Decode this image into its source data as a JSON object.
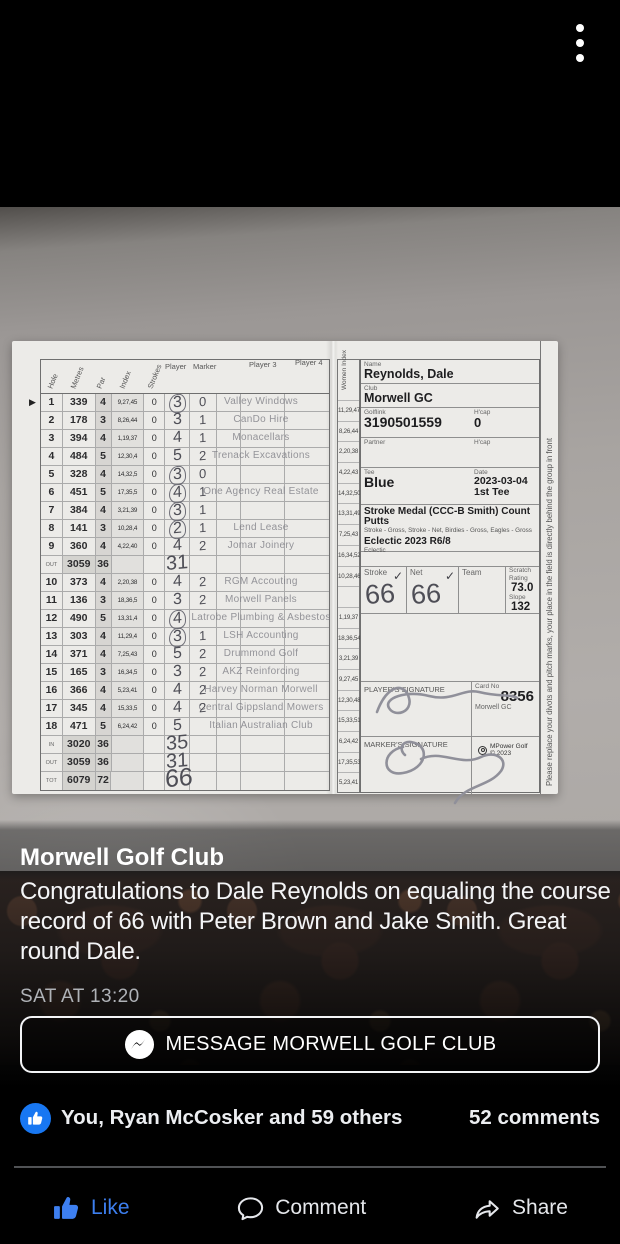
{
  "top_bar": {
    "more_menu_icon": "kebab-menu"
  },
  "post": {
    "author": "Morwell Golf Club",
    "message": "Congratulations to Dale Reynolds on equaling the course record of 66 with Peter Brown and Jake Smith. Great round Dale.",
    "timestamp": "SAT AT 13:20",
    "message_button_label": "MESSAGE MORWELL GOLF CLUB"
  },
  "engagement": {
    "reactions": "You, Ryan McCosker and 59 others",
    "comments": "52 comments"
  },
  "action_bar": {
    "like": "Like",
    "comment": "Comment",
    "share": "Share"
  },
  "colors": {
    "facebook_blue": "#1877f2",
    "like_active": "#3d7ff0",
    "paper": "#ecebe8",
    "timestamp_gray": "#afb2b7"
  },
  "scorecard": {
    "edge_note": "Please replace your divots and pitch marks, your place in the field is directly behind the group in front",
    "table": {
      "headers": {
        "hole": "Hole",
        "metres": "Metres",
        "par": "Par",
        "index": "Index",
        "strokes": "Strokes",
        "player": "Player",
        "marker": "Marker",
        "player3": "Player 3",
        "player4": "Player 4"
      },
      "rows": [
        {
          "type": "hole",
          "hole": "1",
          "metres": "339",
          "par": "4",
          "index": "9,27,45",
          "strokes": "0",
          "score": "3",
          "score_circled": true,
          "marker": "0",
          "sponsor": "Valley Windows"
        },
        {
          "type": "hole",
          "hole": "2",
          "metres": "178",
          "par": "3",
          "index": "8,26,44",
          "strokes": "0",
          "score": "3",
          "score_circled": false,
          "marker": "1",
          "sponsor": "CanDo Hire"
        },
        {
          "type": "hole",
          "hole": "3",
          "metres": "394",
          "par": "4",
          "index": "1,19,37",
          "strokes": "0",
          "score": "4",
          "score_circled": false,
          "marker": "1",
          "sponsor": "Monacellars"
        },
        {
          "type": "hole",
          "hole": "4",
          "metres": "484",
          "par": "5",
          "index": "12,30,4",
          "strokes": "0",
          "score": "5",
          "score_circled": false,
          "marker": "2",
          "sponsor": "Trenack Excavations"
        },
        {
          "type": "hole",
          "hole": "5",
          "metres": "328",
          "par": "4",
          "index": "14,32,5",
          "strokes": "0",
          "score": "3",
          "score_circled": true,
          "marker": "0",
          "sponsor": ""
        },
        {
          "type": "hole",
          "hole": "6",
          "metres": "451",
          "par": "5",
          "index": "17,35,5",
          "strokes": "0",
          "score": "4",
          "score_circled": true,
          "marker": "1",
          "sponsor": "One Agency Real Estate"
        },
        {
          "type": "hole",
          "hole": "7",
          "metres": "384",
          "par": "4",
          "index": "3,21,39",
          "strokes": "0",
          "score": "3",
          "score_circled": true,
          "marker": "1",
          "sponsor": ""
        },
        {
          "type": "hole",
          "hole": "8",
          "metres": "141",
          "par": "3",
          "index": "10,28,4",
          "strokes": "0",
          "score": "2",
          "score_circled": true,
          "marker": "1",
          "sponsor": "Lend Lease"
        },
        {
          "type": "hole",
          "hole": "9",
          "metres": "360",
          "par": "4",
          "index": "4,22,40",
          "strokes": "0",
          "score": "4",
          "score_circled": false,
          "marker": "2",
          "sponsor": "Jomar Joinery"
        },
        {
          "type": "summary",
          "label": "OUT",
          "metres": "3059",
          "par": "36",
          "score": "31"
        },
        {
          "type": "hole",
          "hole": "10",
          "metres": "373",
          "par": "4",
          "index": "2,20,38",
          "strokes": "0",
          "score": "4",
          "score_circled": false,
          "marker": "2",
          "sponsor": "RGM Accouting"
        },
        {
          "type": "hole",
          "hole": "11",
          "metres": "136",
          "par": "3",
          "index": "18,36,5",
          "strokes": "0",
          "score": "3",
          "score_circled": false,
          "marker": "2",
          "sponsor": "Morwell Panels"
        },
        {
          "type": "hole",
          "hole": "12",
          "metres": "490",
          "par": "5",
          "index": "13,31,4",
          "strokes": "0",
          "score": "4",
          "score_circled": true,
          "marker": "",
          "sponsor": "Latrobe Plumbing & Asbestos"
        },
        {
          "type": "hole",
          "hole": "13",
          "metres": "303",
          "par": "4",
          "index": "11,29,4",
          "strokes": "0",
          "score": "3",
          "score_circled": true,
          "marker": "1",
          "sponsor": "LSH Accounting"
        },
        {
          "type": "hole",
          "hole": "14",
          "metres": "371",
          "par": "4",
          "index": "7,25,43",
          "strokes": "0",
          "score": "5",
          "score_circled": false,
          "marker": "2",
          "sponsor": "Drummond Golf"
        },
        {
          "type": "hole",
          "hole": "15",
          "metres": "165",
          "par": "3",
          "index": "16,34,5",
          "strokes": "0",
          "score": "3",
          "score_circled": false,
          "marker": "2",
          "sponsor": "AKZ Reinforcing"
        },
        {
          "type": "hole",
          "hole": "16",
          "metres": "366",
          "par": "4",
          "index": "5,23,41",
          "strokes": "0",
          "score": "4",
          "score_circled": false,
          "marker": "2",
          "sponsor": "Harvey Norman Morwell"
        },
        {
          "type": "hole",
          "hole": "17",
          "metres": "345",
          "par": "4",
          "index": "15,33,5",
          "strokes": "0",
          "score": "4",
          "score_circled": false,
          "marker": "2",
          "sponsor": "Central Gippsland Mowers"
        },
        {
          "type": "hole",
          "hole": "18",
          "metres": "471",
          "par": "5",
          "index": "6,24,42",
          "strokes": "0",
          "score": "5",
          "score_circled": false,
          "marker": "",
          "sponsor": "Italian Australian Club"
        },
        {
          "type": "summary",
          "label": "IN",
          "metres": "3020",
          "par": "36",
          "score": "35"
        },
        {
          "type": "summary",
          "label": "OUT",
          "metres": "3059",
          "par": "36",
          "score": "31"
        },
        {
          "type": "summary",
          "label": "TOT",
          "metres": "6079",
          "par": "72",
          "score": "66"
        }
      ]
    },
    "women_index": {
      "label": "Women Index",
      "values": [
        "11,29,47",
        "8,26,44",
        "2,20,38",
        "4,22,43",
        "14,32,50",
        "13,31,49",
        "7,25,43",
        "16,34,52",
        "10,28,46",
        "",
        "1,19,37",
        "18,36,54",
        "3,21,39",
        "9,27,45",
        "12,30,48",
        "15,33,51",
        "6,24,42",
        "17,35,53",
        "5,23,41"
      ]
    },
    "right_panel": {
      "name_label": "Name",
      "name": "Reynolds, Dale",
      "club_label": "Club",
      "club": "Morwell GC",
      "golflink_label": "Golflink",
      "golflink": "3190501559",
      "hcap_label": "H'cap",
      "hcap": "0",
      "partner_label": "Partner",
      "partner_hcap_label": "H'cap",
      "tee_label": "Tee",
      "tee": "Blue",
      "date_label": "Date",
      "date": "2023-03-04 1st Tee",
      "comp_title": "Stroke Medal (CCC-B Smith) Count Putts",
      "comp_sub": "Stroke - Gross, Stroke - Net, Birdies - Gross, Eagles - Gross",
      "comp_title2": "Eclectic 2023 R6/8",
      "comp_sub2": "Eclectic",
      "check": "✓",
      "stroke_label": "Stroke",
      "stroke_score": "66",
      "net_label": "Net",
      "net_score": "66",
      "team_label": "Team",
      "scratch_label": "Scratch Rating",
      "scratch_rating": "73.0",
      "slope_label": "Slope",
      "slope": "132",
      "player_sig_label": "PLAYER'S SIGNATURE",
      "marker_sig_label": "MARKER'S SIGNATURE",
      "card_no_label": "Card No",
      "card_no": "8356",
      "card_club": "Morwell GC",
      "brand": "MPower Golf",
      "brand_year": "© 2023"
    }
  }
}
